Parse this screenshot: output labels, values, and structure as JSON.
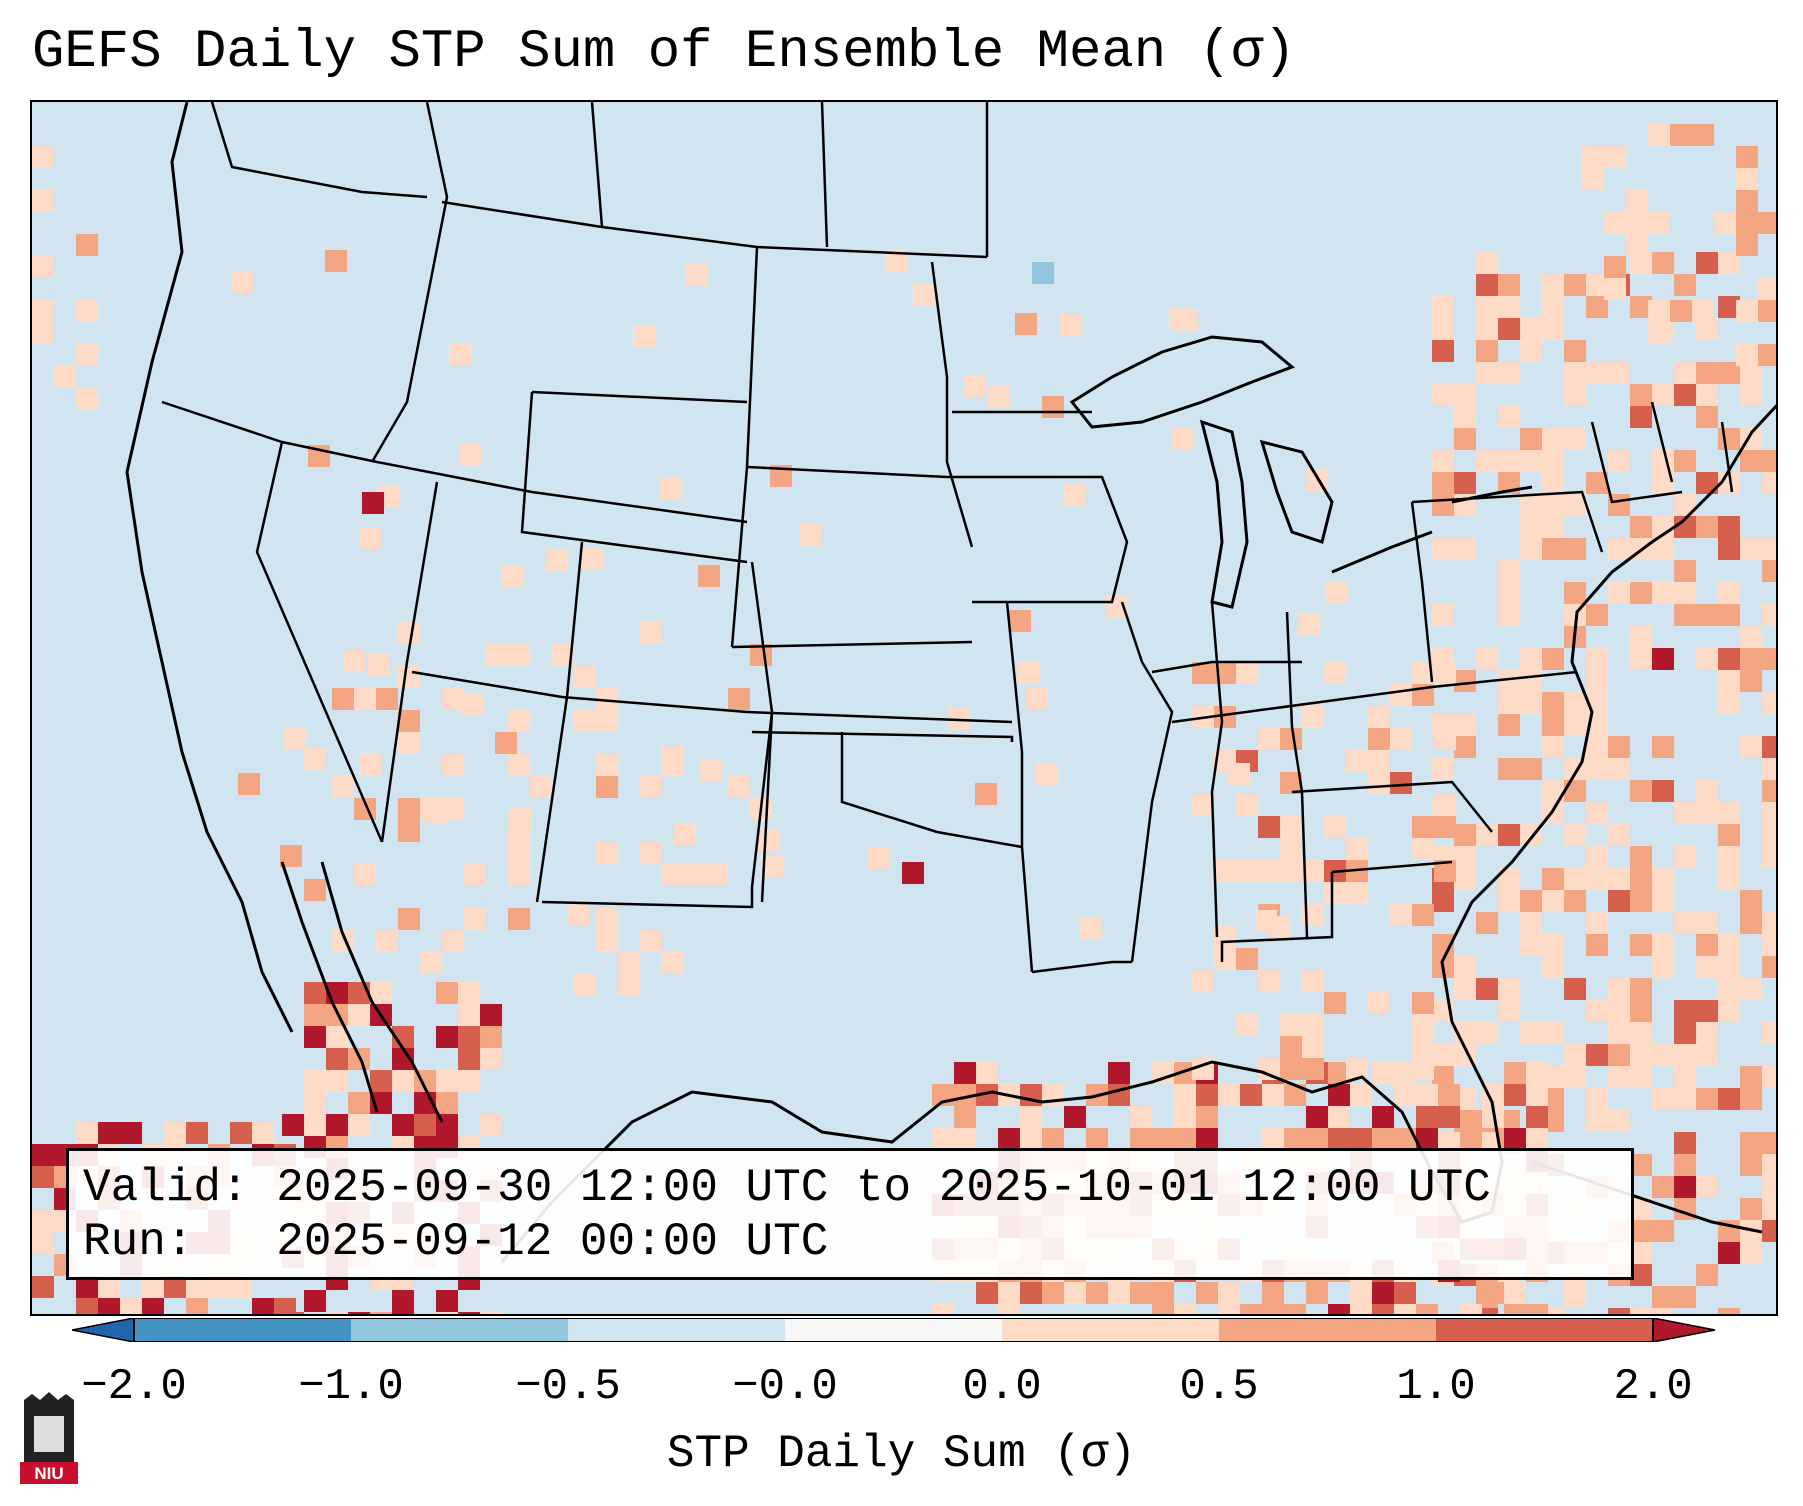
{
  "title": "GEFS Daily STP Sum of Ensemble Mean (σ)",
  "info": {
    "valid_label": "Valid:",
    "valid_value": "2025-09-30 12:00 UTC to 2025-10-01 12:00 UTC",
    "run_label": "Run:",
    "run_value": "2025-09-12 00:00 UTC"
  },
  "colorbar": {
    "label": "STP Daily Sum (σ)",
    "ticks": [
      "−2.0",
      "−1.0",
      "−0.5",
      "−0.0",
      "0.0",
      "0.5",
      "1.0",
      "2.0"
    ],
    "colors": [
      "#4393c3",
      "#92c5de",
      "#d1e5f0",
      "#f7f7f7",
      "#fddbc7",
      "#f4a582",
      "#d6604d"
    ],
    "under_color": "#2166ac",
    "over_color": "#b2182b"
  },
  "map": {
    "region": "Contiguous United States",
    "background_color": "#d1e5f0",
    "land_color": "#d1e5f0"
  },
  "logo": {
    "text": "NIU"
  }
}
